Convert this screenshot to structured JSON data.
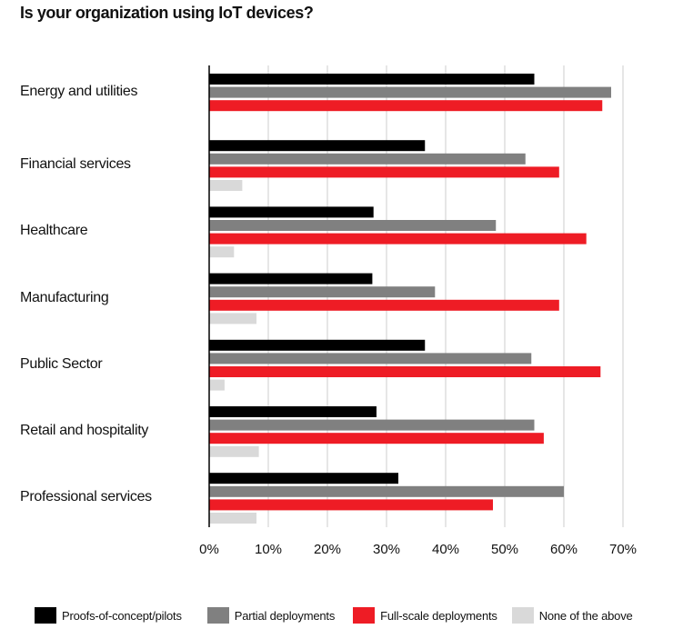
{
  "chart_data": {
    "type": "bar",
    "orientation": "horizontal",
    "title": "Is your organization using IoT devices?",
    "categories": [
      "Energy and utilities",
      "Financial services",
      "Healthcare",
      "Manufacturing",
      "Public Sector",
      "Retail and hospitality",
      "Professional services"
    ],
    "series": [
      {
        "name": "Proofs-of-concept/pilots",
        "color": "#000000",
        "values": [
          55,
          36.5,
          27.8,
          27.6,
          36.5,
          28.3,
          32
        ]
      },
      {
        "name": "Partial deployments",
        "color": "#808080",
        "values": [
          68,
          53.5,
          48.5,
          38.2,
          54.5,
          55,
          60
        ]
      },
      {
        "name": "Full-scale deployments",
        "color": "#ee1c25",
        "values": [
          66.5,
          59.2,
          63.8,
          59.2,
          66.2,
          56.6,
          48
        ]
      },
      {
        "name": "None of the above",
        "color": "#d9d9d9",
        "values": [
          null,
          5.6,
          4.2,
          8,
          2.6,
          8.4,
          8
        ]
      }
    ],
    "xlim": [
      0,
      70
    ],
    "xticks": [
      "0%",
      "10%",
      "20%",
      "30%",
      "40%",
      "50%",
      "60%",
      "70%"
    ],
    "grid": true,
    "legend_position": "bottom"
  }
}
